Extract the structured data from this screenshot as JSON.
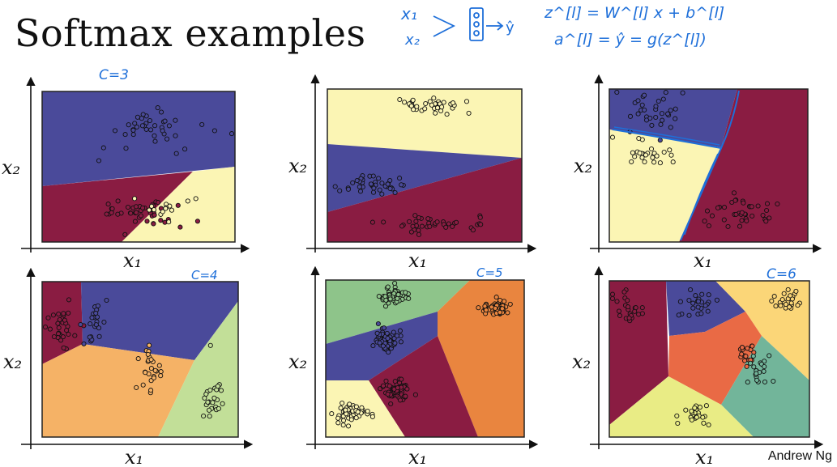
{
  "slide": {
    "title": "Softmax examples",
    "footer": "Andrew Ng"
  },
  "annotations": {
    "top_notes": [
      "x₁",
      "x₂",
      "z^[l] = W^[l] x + b^[l]",
      "a^[l] = ŷ = g(z^[l])"
    ],
    "c3": "C=3",
    "c4": "C=4",
    "c5": "C=5",
    "c6": "C=6",
    "ink_color": "#1e6fd9"
  },
  "chart_data": [
    {
      "type": "scatter",
      "xlabel": "x₁",
      "ylabel": "x₂",
      "classes": 3,
      "region_colors": [
        "#4a4a9a",
        "#8a1c42",
        "#fbf5b4"
      ]
    },
    {
      "type": "scatter",
      "xlabel": "x₁",
      "ylabel": "x₂",
      "classes": 3,
      "region_colors": [
        "#fbf5b4",
        "#4a4a9a",
        "#8a1c42"
      ]
    },
    {
      "type": "scatter",
      "xlabel": "x₁",
      "ylabel": "x₂",
      "classes": 3,
      "region_colors": [
        "#4a4a9a",
        "#8a1c42",
        "#fbf5b4"
      ]
    },
    {
      "type": "scatter",
      "xlabel": "x₁",
      "ylabel": "x₂",
      "classes": 4,
      "region_colors": [
        "#8a1c42",
        "#4a4a9a",
        "#f5b266",
        "#c2df98"
      ]
    },
    {
      "type": "scatter",
      "xlabel": "x₁",
      "ylabel": "x₂",
      "classes": 5,
      "region_colors": [
        "#8ec48a",
        "#e9853f",
        "#4a4a9a",
        "#8a1c42",
        "#fbf5b4"
      ]
    },
    {
      "type": "scatter",
      "xlabel": "x₁",
      "ylabel": "x₂",
      "classes": 6,
      "region_colors": [
        "#8a1c42",
        "#4a4a9a",
        "#fbd678",
        "#e96a45",
        "#72b59a",
        "#e9ec85"
      ]
    }
  ]
}
